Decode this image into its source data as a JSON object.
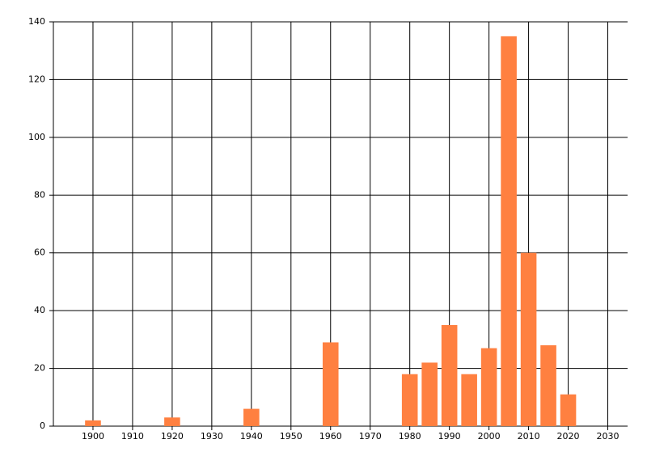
{
  "chart_data": {
    "type": "bar",
    "x": [
      1900,
      1920,
      1940,
      1960,
      1980,
      1985,
      1990,
      1995,
      2000,
      2005,
      2010,
      2015,
      2020
    ],
    "values": [
      2,
      3,
      6,
      29,
      18,
      22,
      35,
      18,
      27,
      135,
      60,
      28,
      11
    ],
    "color": "#ff8040",
    "xlim": [
      1890,
      2035
    ],
    "xticks": [
      1900,
      1910,
      1920,
      1930,
      1940,
      1950,
      1960,
      1970,
      1980,
      1990,
      2000,
      2010,
      2020,
      2030
    ],
    "ylim": [
      0,
      140
    ],
    "yticks": [
      0,
      20,
      40,
      60,
      80,
      100,
      120,
      140
    ],
    "grid": true
  }
}
